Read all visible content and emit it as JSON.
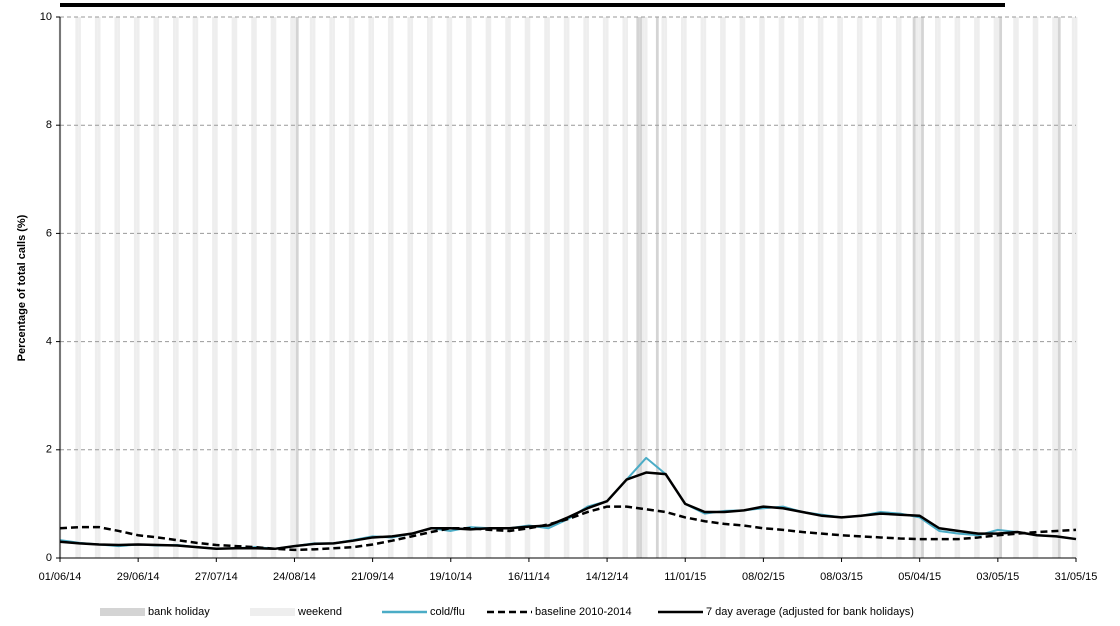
{
  "chart_data": {
    "type": "line",
    "y_label": "Percentage of total calls (%)",
    "x": [
      "01/06/14",
      "08/06/14",
      "15/06/14",
      "22/06/14",
      "29/06/14",
      "06/07/14",
      "13/07/14",
      "20/07/14",
      "27/07/14",
      "03/08/14",
      "10/08/14",
      "17/08/14",
      "24/08/14",
      "31/08/14",
      "07/09/14",
      "14/09/14",
      "21/09/14",
      "28/09/14",
      "05/10/14",
      "12/10/14",
      "19/10/14",
      "26/10/14",
      "02/11/14",
      "09/11/14",
      "16/11/14",
      "23/11/14",
      "30/11/14",
      "07/12/14",
      "14/12/14",
      "21/12/14",
      "28/12/14",
      "04/01/15",
      "11/01/15",
      "18/01/15",
      "25/01/15",
      "01/02/15",
      "08/02/15",
      "15/02/15",
      "22/02/15",
      "01/03/15",
      "08/03/15",
      "15/03/15",
      "22/03/15",
      "29/03/15",
      "05/04/15",
      "12/04/15",
      "19/04/15",
      "26/04/15",
      "03/05/15",
      "10/05/15",
      "17/05/15",
      "24/05/15",
      "31/05/15"
    ],
    "series": [
      {
        "name": "cold/flu",
        "color": "#4bacc6",
        "dash": "solid",
        "values": [
          0.33,
          0.28,
          0.25,
          0.22,
          0.25,
          0.23,
          0.24,
          0.2,
          0.17,
          0.18,
          0.2,
          0.17,
          0.22,
          0.27,
          0.27,
          0.33,
          0.4,
          0.38,
          0.45,
          0.55,
          0.5,
          0.57,
          0.55,
          0.55,
          0.6,
          0.55,
          0.72,
          0.95,
          1.05,
          1.45,
          1.85,
          1.55,
          1.0,
          0.82,
          0.87,
          0.88,
          0.92,
          0.95,
          0.85,
          0.8,
          0.75,
          0.78,
          0.85,
          0.82,
          0.75,
          0.5,
          0.45,
          0.42,
          0.52,
          0.48,
          0.42,
          0.4,
          0.35
        ]
      },
      {
        "name": "baseline 2010-2014",
        "color": "#000000",
        "dash": "dashed",
        "values": [
          0.55,
          0.57,
          0.57,
          0.5,
          0.42,
          0.38,
          0.33,
          0.28,
          0.24,
          0.22,
          0.2,
          0.17,
          0.15,
          0.16,
          0.18,
          0.2,
          0.25,
          0.32,
          0.4,
          0.48,
          0.55,
          0.55,
          0.52,
          0.5,
          0.55,
          0.62,
          0.72,
          0.85,
          0.95,
          0.95,
          0.9,
          0.85,
          0.75,
          0.68,
          0.63,
          0.6,
          0.55,
          0.52,
          0.48,
          0.45,
          0.42,
          0.4,
          0.38,
          0.36,
          0.35,
          0.35,
          0.35,
          0.38,
          0.42,
          0.45,
          0.48,
          0.5,
          0.52
        ]
      },
      {
        "name": "7 day average (adjusted for bank holidays)",
        "color": "#000000",
        "dash": "solid",
        "values": [
          0.3,
          0.27,
          0.25,
          0.24,
          0.25,
          0.24,
          0.23,
          0.2,
          0.17,
          0.18,
          0.18,
          0.17,
          0.22,
          0.26,
          0.27,
          0.32,
          0.38,
          0.4,
          0.45,
          0.55,
          0.55,
          0.53,
          0.55,
          0.55,
          0.58,
          0.6,
          0.75,
          0.92,
          1.05,
          1.45,
          1.58,
          1.55,
          1.0,
          0.85,
          0.85,
          0.88,
          0.95,
          0.92,
          0.85,
          0.78,
          0.75,
          0.78,
          0.82,
          0.8,
          0.78,
          0.55,
          0.5,
          0.45,
          0.45,
          0.48,
          0.42,
          0.4,
          0.35
        ]
      }
    ],
    "bank_holidays": {
      "name": "bank holiday",
      "color": "#d4d4d4",
      "dates": [
        "25/08/14",
        "25/12/14",
        "26/12/14",
        "01/01/15",
        "03/04/15",
        "06/04/15",
        "04/05/15",
        "25/05/15"
      ]
    },
    "weekends": {
      "name": "weekend",
      "color": "#eeeeee"
    },
    "xlim": [
      "01/06/14",
      "31/05/15"
    ],
    "xticks": [
      "01/06/14",
      "29/06/14",
      "27/07/14",
      "24/08/14",
      "21/09/14",
      "19/10/14",
      "16/11/14",
      "14/12/14",
      "11/01/15",
      "08/02/15",
      "08/03/15",
      "05/04/15",
      "03/05/15",
      "31/05/15"
    ],
    "ylim": [
      0,
      10
    ],
    "yticks": [
      0,
      2,
      4,
      6,
      8,
      10
    ],
    "grid": true
  }
}
